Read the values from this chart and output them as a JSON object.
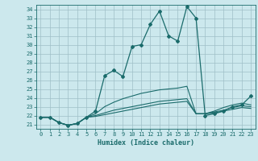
{
  "xlabel": "Humidex (Indice chaleur)",
  "bg_color": "#cce8ed",
  "grid_color": "#9fbfc7",
  "line_color": "#1a6b6b",
  "xlim": [
    -0.5,
    23.5
  ],
  "ylim": [
    20.5,
    34.5
  ],
  "yticks": [
    21,
    22,
    23,
    24,
    25,
    26,
    27,
    28,
    29,
    30,
    31,
    32,
    33,
    34
  ],
  "xticks": [
    0,
    1,
    2,
    3,
    4,
    5,
    6,
    7,
    8,
    9,
    10,
    11,
    12,
    13,
    14,
    15,
    16,
    17,
    18,
    19,
    20,
    21,
    22,
    23
  ],
  "series_main": [
    21.8,
    21.8,
    21.2,
    20.9,
    21.1,
    21.8,
    22.5,
    26.5,
    27.1,
    26.4,
    29.8,
    30.0,
    32.3,
    33.8,
    31.0,
    30.4,
    34.3,
    33.0,
    22.0,
    22.2,
    22.5,
    23.0,
    23.2,
    24.2
  ],
  "series2": [
    21.8,
    21.8,
    21.2,
    20.9,
    21.1,
    21.8,
    22.2,
    23.0,
    23.5,
    23.9,
    24.2,
    24.5,
    24.7,
    24.9,
    25.0,
    25.1,
    25.3,
    22.2,
    22.2,
    22.5,
    22.9,
    23.2,
    23.4,
    23.2
  ],
  "series3": [
    21.8,
    21.8,
    21.2,
    20.9,
    21.1,
    21.8,
    22.0,
    22.3,
    22.6,
    22.8,
    23.0,
    23.2,
    23.4,
    23.6,
    23.7,
    23.8,
    23.9,
    22.2,
    22.2,
    22.4,
    22.6,
    22.9,
    23.1,
    23.0
  ],
  "series4": [
    21.8,
    21.8,
    21.2,
    20.9,
    21.1,
    21.8,
    21.9,
    22.1,
    22.3,
    22.5,
    22.7,
    22.9,
    23.1,
    23.3,
    23.4,
    23.5,
    23.6,
    22.2,
    22.2,
    22.3,
    22.5,
    22.7,
    22.9,
    22.8
  ]
}
